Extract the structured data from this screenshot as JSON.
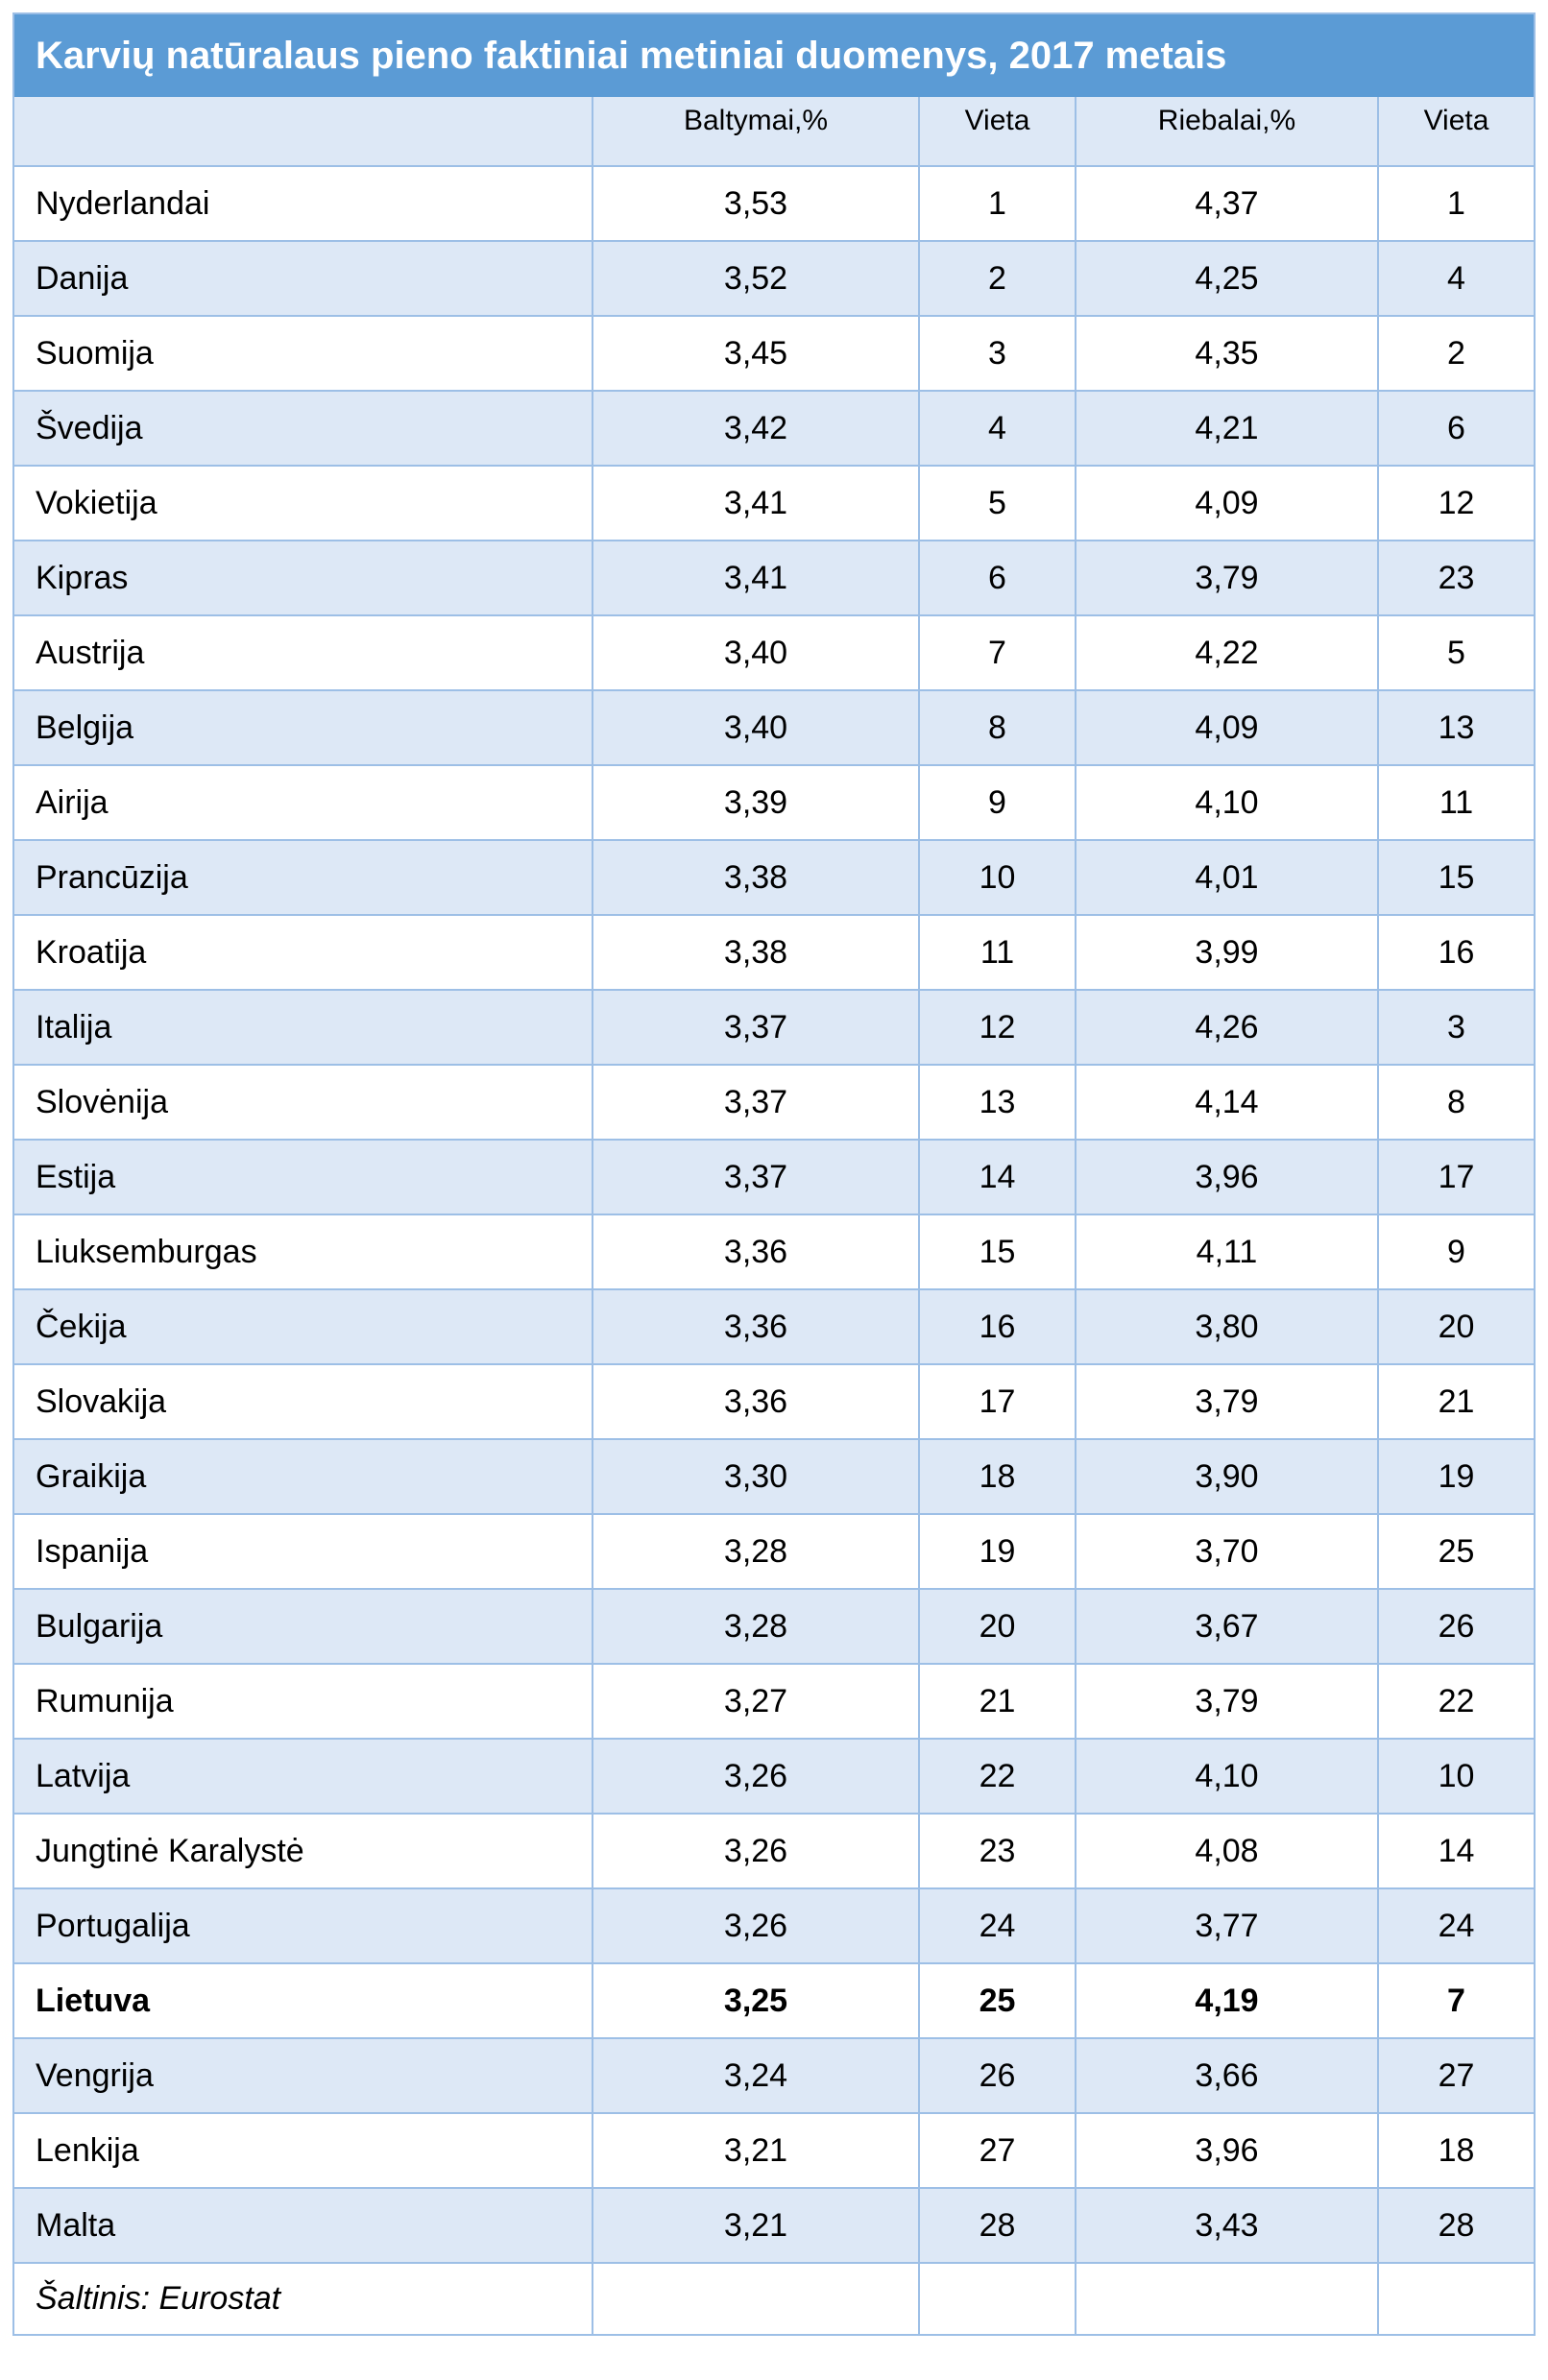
{
  "title": "Karvių natūralaus pieno faktiniai metiniai duomenys, 2017 metais",
  "colors": {
    "title_background": "#5b9bd5",
    "title_text": "#ffffff",
    "stripe": "#dde8f6",
    "grid": "#9dbfe6"
  },
  "table": {
    "headers": [
      "",
      "Baltymai,%",
      "Vieta",
      "Riebalai,%",
      "Vieta"
    ],
    "rows": [
      {
        "country": "Nyderlandai",
        "protein": "3,53",
        "protein_rank": "1",
        "fat": "4,37",
        "fat_rank": "1"
      },
      {
        "country": "Danija",
        "protein": "3,52",
        "protein_rank": "2",
        "fat": "4,25",
        "fat_rank": "4"
      },
      {
        "country": "Suomija",
        "protein": "3,45",
        "protein_rank": "3",
        "fat": "4,35",
        "fat_rank": "2"
      },
      {
        "country": "Švedija",
        "protein": "3,42",
        "protein_rank": "4",
        "fat": "4,21",
        "fat_rank": "6"
      },
      {
        "country": "Vokietija",
        "protein": "3,41",
        "protein_rank": "5",
        "fat": "4,09",
        "fat_rank": "12"
      },
      {
        "country": "Kipras",
        "protein": "3,41",
        "protein_rank": "6",
        "fat": "3,79",
        "fat_rank": "23"
      },
      {
        "country": "Austrija",
        "protein": "3,40",
        "protein_rank": "7",
        "fat": "4,22",
        "fat_rank": "5"
      },
      {
        "country": "Belgija",
        "protein": "3,40",
        "protein_rank": "8",
        "fat": "4,09",
        "fat_rank": "13"
      },
      {
        "country": "Airija",
        "protein": "3,39",
        "protein_rank": "9",
        "fat": "4,10",
        "fat_rank": "11"
      },
      {
        "country": "Prancūzija",
        "protein": "3,38",
        "protein_rank": "10",
        "fat": "4,01",
        "fat_rank": "15"
      },
      {
        "country": "Kroatija",
        "protein": "3,38",
        "protein_rank": "11",
        "fat": "3,99",
        "fat_rank": "16"
      },
      {
        "country": "Italija",
        "protein": "3,37",
        "protein_rank": "12",
        "fat": "4,26",
        "fat_rank": "3"
      },
      {
        "country": "Slovėnija",
        "protein": "3,37",
        "protein_rank": "13",
        "fat": "4,14",
        "fat_rank": "8"
      },
      {
        "country": "Estija",
        "protein": "3,37",
        "protein_rank": "14",
        "fat": "3,96",
        "fat_rank": "17"
      },
      {
        "country": "Liuksemburgas",
        "protein": "3,36",
        "protein_rank": "15",
        "fat": "4,11",
        "fat_rank": "9"
      },
      {
        "country": "Čekija",
        "protein": "3,36",
        "protein_rank": "16",
        "fat": "3,80",
        "fat_rank": "20"
      },
      {
        "country": "Slovakija",
        "protein": "3,36",
        "protein_rank": "17",
        "fat": "3,79",
        "fat_rank": "21"
      },
      {
        "country": "Graikija",
        "protein": "3,30",
        "protein_rank": "18",
        "fat": "3,90",
        "fat_rank": "19"
      },
      {
        "country": "Ispanija",
        "protein": "3,28",
        "protein_rank": "19",
        "fat": "3,70",
        "fat_rank": "25"
      },
      {
        "country": "Bulgarija",
        "protein": "3,28",
        "protein_rank": "20",
        "fat": "3,67",
        "fat_rank": "26"
      },
      {
        "country": "Rumunija",
        "protein": "3,27",
        "protein_rank": "21",
        "fat": "3,79",
        "fat_rank": "22"
      },
      {
        "country": "Latvija",
        "protein": "3,26",
        "protein_rank": "22",
        "fat": "4,10",
        "fat_rank": "10"
      },
      {
        "country": "Jungtinė Karalystė",
        "protein": "3,26",
        "protein_rank": "23",
        "fat": "4,08",
        "fat_rank": "14"
      },
      {
        "country": "Portugalija",
        "protein": "3,26",
        "protein_rank": "24",
        "fat": "3,77",
        "fat_rank": "24"
      },
      {
        "country": "Lietuva",
        "protein": "3,25",
        "protein_rank": "25",
        "fat": "4,19",
        "fat_rank": "7",
        "highlight": true
      },
      {
        "country": "Vengrija",
        "protein": "3,24",
        "protein_rank": "26",
        "fat": "3,66",
        "fat_rank": "27"
      },
      {
        "country": "Lenkija",
        "protein": "3,21",
        "protein_rank": "27",
        "fat": "3,96",
        "fat_rank": "18"
      },
      {
        "country": "Malta",
        "protein": "3,21",
        "protein_rank": "28",
        "fat": "3,43",
        "fat_rank": "28"
      }
    ],
    "source": "Šaltinis: Eurostat"
  }
}
